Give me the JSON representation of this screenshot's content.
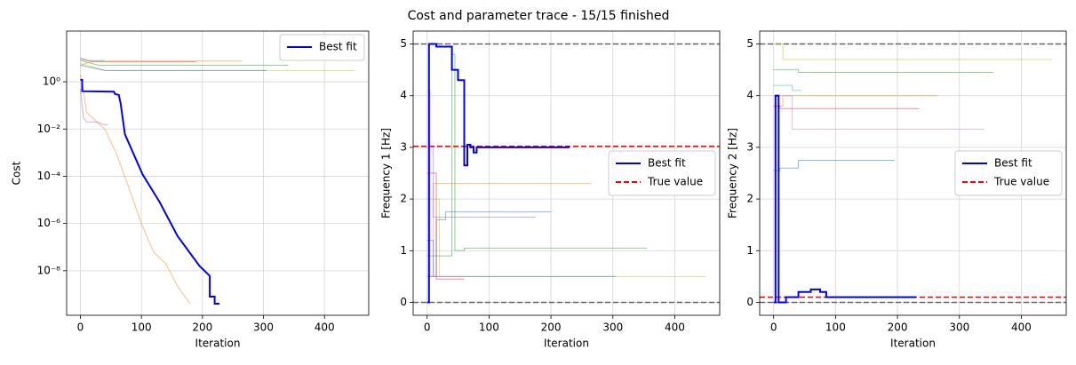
{
  "title": "Cost and parameter trace - 15/15 finished",
  "chart_data": [
    {
      "type": "line",
      "xlabel": "Iteration",
      "ylabel": "Cost",
      "yscale": "log",
      "grid": true,
      "legend": "upper right",
      "xlim": [
        -22.5,
        472.5
      ],
      "xticks": [
        0,
        100,
        200,
        300,
        400
      ],
      "ylim": [
        1.3e-10,
        140
      ],
      "yticks": [
        {
          "value": 1,
          "label": "10⁰"
        },
        {
          "value": 0.01,
          "label": "10⁻²"
        },
        {
          "value": 0.0001,
          "label": "10⁻⁴"
        },
        {
          "value": 1e-06,
          "label": "10⁻⁶"
        },
        {
          "value": 1e-08,
          "label": "10⁻⁸"
        }
      ],
      "series": [
        {
          "color": "#ff7f0e",
          "x": [
            0,
            5,
            10,
            20,
            40,
            60,
            80,
            100,
            120,
            140,
            160,
            180
          ],
          "values": [
            2,
            0.5,
            0.05,
            0.03,
            0.01,
            0.0008,
            3e-05,
            1e-06,
            6e-08,
            2e-08,
            2e-09,
            4e-10
          ]
        },
        {
          "color": "#9467bd",
          "x": [
            0,
            5,
            10,
            25,
            40,
            45
          ],
          "values": [
            0.5,
            0.03,
            0.02,
            0.02,
            0.015,
            0.015
          ]
        },
        {
          "color": "#d62728",
          "x": [
            0,
            20,
            20,
            190
          ],
          "values": [
            10,
            7,
            7,
            7
          ]
        },
        {
          "color": "#ff7f0e",
          "x": [
            0,
            20,
            20,
            265
          ],
          "values": [
            5,
            7.5,
            7.5,
            7.5
          ]
        },
        {
          "color": "#2ca02c",
          "x": [
            0,
            30,
            30,
            340
          ],
          "values": [
            8,
            5,
            5,
            5
          ]
        },
        {
          "color": "#bcbd22",
          "x": [
            0,
            40,
            40,
            450
          ],
          "values": [
            6,
            3,
            3,
            3
          ]
        },
        {
          "color": "#1f77b4",
          "x": [
            0,
            40,
            40,
            305
          ],
          "values": [
            5,
            3,
            3,
            3
          ]
        },
        {
          "color": "#17becf",
          "x": [
            0,
            10,
            10,
            40
          ],
          "values": [
            9,
            8,
            8,
            8
          ]
        },
        {
          "name": "Best fit",
          "color": "#0000ff",
          "width": 2,
          "x": [
            0,
            3,
            3,
            55,
            57,
            63,
            66,
            73,
            102,
            130,
            159,
            195,
            212,
            212,
            220,
            220,
            228
          ],
          "values": [
            1.2,
            1.2,
            0.4,
            0.38,
            0.3,
            0.28,
            0.12,
            0.006,
            0.00012,
            8e-06,
            3e-07,
            1.6e-08,
            6e-09,
            8e-10,
            8e-10,
            4e-10,
            4e-10
          ]
        }
      ]
    },
    {
      "type": "line",
      "xlabel": "Iteration",
      "ylabel": "Frequency 1 [Hz]",
      "grid": true,
      "legend": "center right",
      "xlim": [
        -22.5,
        472.5
      ],
      "xticks": [
        0,
        100,
        200,
        300,
        400
      ],
      "ylim": [
        -0.25,
        5.25
      ],
      "yticks": [
        0,
        1,
        2,
        3,
        4,
        5
      ],
      "hlines": [
        {
          "y": 0,
          "color": "#666666"
        },
        {
          "y": 5,
          "color": "#666666"
        },
        {
          "name": "True value",
          "y": 3.02,
          "color": "#ff0000"
        }
      ],
      "series": [
        {
          "color": "#ff7f0e",
          "x": [
            0,
            10,
            10,
            265
          ],
          "values": [
            0.5,
            0.5,
            2.3,
            2.3
          ]
        },
        {
          "color": "#1f77b4",
          "x": [
            0,
            15,
            15,
            30,
            30,
            200
          ],
          "values": [
            0.5,
            0.5,
            1.6,
            1.6,
            1.75,
            1.75
          ]
        },
        {
          "color": "#9467bd",
          "x": [
            0,
            10,
            10,
            175
          ],
          "values": [
            3,
            3,
            1.65,
            1.65
          ]
        },
        {
          "color": "#2ca02c",
          "x": [
            0,
            40,
            40,
            45,
            45,
            60,
            60,
            355
          ],
          "values": [
            0.9,
            0.9,
            4.8,
            4.8,
            1.0,
            1.0,
            1.05,
            1.05
          ]
        },
        {
          "color": "#bcbd22",
          "x": [
            0,
            20,
            20,
            450
          ],
          "values": [
            2,
            2,
            0.5,
            0.5
          ]
        },
        {
          "color": "#1f77b4",
          "x": [
            0,
            10,
            10,
            305
          ],
          "values": [
            1.2,
            1.2,
            0.5,
            0.5
          ]
        },
        {
          "color": "#d62728",
          "x": [
            0,
            15,
            15,
            60
          ],
          "values": [
            2.5,
            2.5,
            0.45,
            0.45
          ]
        },
        {
          "color": "#e377c2",
          "x": [
            0,
            5,
            5,
            60
          ],
          "values": [
            4.1,
            4.1,
            0.5,
            0.5
          ]
        },
        {
          "name": "Best fit",
          "color": "#0000ff",
          "width": 2,
          "x": [
            0,
            3,
            3,
            15,
            15,
            40,
            40,
            50,
            50,
            60,
            60,
            65,
            65,
            70,
            70,
            75,
            75,
            80,
            80,
            230
          ],
          "values": [
            0,
            0,
            5,
            5,
            4.95,
            4.95,
            4.5,
            4.5,
            4.3,
            4.3,
            2.65,
            2.65,
            3.05,
            3.05,
            3.0,
            3.0,
            2.9,
            2.9,
            3.0,
            3.0
          ]
        }
      ]
    },
    {
      "type": "line",
      "xlabel": "Iteration",
      "ylabel": "Frequency 2 [Hz]",
      "grid": true,
      "legend": "center right",
      "xlim": [
        -22.5,
        472.5
      ],
      "xticks": [
        0,
        100,
        200,
        300,
        400
      ],
      "ylim": [
        -0.25,
        5.25
      ],
      "yticks": [
        0,
        1,
        2,
        3,
        4,
        5
      ],
      "hlines": [
        {
          "y": 0,
          "color": "#666666"
        },
        {
          "y": 5,
          "color": "#666666"
        },
        {
          "name": "True value",
          "y": 0.1,
          "color": "#ff0000"
        }
      ],
      "series": [
        {
          "color": "#bcbd22",
          "x": [
            0,
            15,
            15,
            450
          ],
          "values": [
            5,
            5,
            4.7,
            4.7
          ]
        },
        {
          "color": "#2ca02c",
          "x": [
            0,
            40,
            40,
            355
          ],
          "values": [
            4.5,
            4.5,
            4.45,
            4.45
          ]
        },
        {
          "color": "#ff7f0e",
          "x": [
            0,
            15,
            15,
            265
          ],
          "values": [
            3.8,
            3.8,
            4.0,
            4.0
          ]
        },
        {
          "color": "#17becf",
          "x": [
            0,
            30,
            30,
            45
          ],
          "values": [
            4.2,
            4.2,
            4.1,
            4.1
          ]
        },
        {
          "color": "#d62728",
          "x": [
            0,
            10,
            10,
            235
          ],
          "values": [
            3.8,
            3.8,
            3.75,
            3.75
          ]
        },
        {
          "color": "#e377c2",
          "x": [
            0,
            30,
            30,
            340
          ],
          "values": [
            4.0,
            4.0,
            3.35,
            3.35
          ]
        },
        {
          "color": "#1f77b4",
          "x": [
            0,
            10,
            10,
            40,
            40,
            195
          ],
          "values": [
            2.55,
            2.55,
            2.6,
            2.6,
            2.75,
            2.75
          ]
        },
        {
          "name": "Best fit",
          "color": "#0000ff",
          "width": 2,
          "x": [
            0,
            3,
            3,
            8,
            8,
            20,
            20,
            40,
            40,
            60,
            60,
            75,
            75,
            85,
            85,
            230
          ],
          "values": [
            0,
            0,
            4.0,
            4.0,
            0,
            0,
            0.1,
            0.1,
            0.2,
            0.2,
            0.25,
            0.25,
            0.2,
            0.2,
            0.1,
            0.1
          ]
        }
      ]
    }
  ]
}
